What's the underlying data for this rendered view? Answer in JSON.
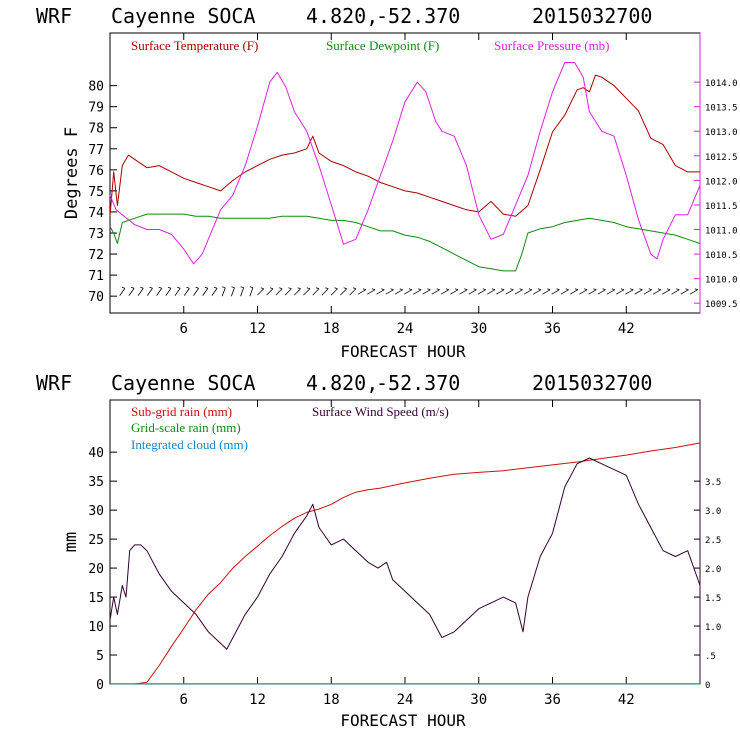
{
  "chart_data": [
    {
      "type": "line",
      "header": {
        "model": "WRF",
        "station": "Cayenne SOCA",
        "lat": "4.820,",
        "lon": "-52.370",
        "run": "2015032700"
      },
      "xlabel": "FORECAST HOUR",
      "ylabel": "Degrees F",
      "xlim": [
        0,
        48
      ],
      "xticks": [
        6,
        12,
        18,
        24,
        30,
        36,
        42
      ],
      "ylim": [
        69.2,
        82.5
      ],
      "yticks": [
        70,
        71,
        72,
        73,
        74,
        75,
        76,
        77,
        78,
        79,
        80
      ],
      "y2lim": [
        1009.3,
        1015.0
      ],
      "y2ticks": [
        "1009.5",
        "1010.0",
        "1010.5",
        "1011.0",
        "1011.5",
        "1012.0",
        "1012.5",
        "1013.0",
        "1013.5",
        "1014.0"
      ],
      "legend": [
        "Surface Temperature (F)",
        "Surface Dewpoint (F)",
        "Surface Pressure (mb)"
      ],
      "wind_barbs": "row of wind barbs along y≈70.2",
      "series": [
        {
          "name": "Surface Temperature (F)",
          "color": "#aa0000",
          "axis": "left",
          "x": [
            0,
            0.3,
            0.6,
            1,
            1.5,
            2,
            3,
            4,
            5,
            6,
            7,
            8,
            9,
            10,
            11,
            12,
            13,
            14,
            15,
            16,
            16.5,
            17,
            18,
            19,
            20,
            21,
            22,
            23,
            24,
            25,
            26,
            27,
            28,
            29,
            30,
            31,
            32,
            33,
            34,
            35,
            36,
            37,
            38,
            38.5,
            39,
            39.5,
            40,
            41,
            42,
            43,
            44,
            45,
            46,
            47,
            48
          ],
          "values": [
            73.8,
            75.9,
            74.3,
            76.2,
            76.7,
            76.5,
            76.1,
            76.2,
            75.9,
            75.6,
            75.4,
            75.2,
            75.0,
            75.5,
            75.9,
            76.2,
            76.5,
            76.7,
            76.8,
            77.0,
            77.6,
            76.8,
            76.4,
            76.2,
            75.9,
            75.7,
            75.4,
            75.2,
            75.0,
            74.9,
            74.7,
            74.5,
            74.3,
            74.1,
            74.0,
            74.5,
            73.9,
            73.8,
            74.3,
            76.0,
            77.8,
            78.6,
            79.8,
            79.9,
            79.7,
            80.5,
            80.4,
            80.0,
            79.4,
            78.8,
            77.5,
            77.2,
            76.2,
            75.9,
            75.9
          ]
        },
        {
          "name": "Surface Dewpoint (F)",
          "color": "#118811",
          "axis": "left",
          "x": [
            0,
            0.3,
            0.6,
            1,
            2,
            3,
            4,
            5,
            6,
            7,
            8,
            9,
            10,
            11,
            12,
            13,
            14,
            15,
            16,
            17,
            18,
            19,
            20,
            21,
            22,
            23,
            24,
            25,
            26,
            27,
            28,
            29,
            30,
            31,
            32,
            33,
            33.5,
            34,
            35,
            36,
            37,
            38,
            39,
            40,
            41,
            42,
            43,
            44,
            45,
            46,
            47,
            48
          ],
          "values": [
            73.3,
            73.0,
            72.5,
            73.5,
            73.7,
            73.9,
            73.9,
            73.9,
            73.9,
            73.8,
            73.8,
            73.7,
            73.7,
            73.7,
            73.7,
            73.7,
            73.8,
            73.8,
            73.8,
            73.7,
            73.6,
            73.6,
            73.5,
            73.3,
            73.1,
            73.1,
            72.9,
            72.8,
            72.6,
            72.3,
            72.0,
            71.7,
            71.4,
            71.3,
            71.2,
            71.2,
            72.0,
            73.0,
            73.2,
            73.3,
            73.5,
            73.6,
            73.7,
            73.6,
            73.5,
            73.3,
            73.2,
            73.1,
            73.0,
            72.9,
            72.7,
            72.5
          ]
        },
        {
          "name": "Surface Pressure (mb)",
          "color": "#dd22dd",
          "axis": "right",
          "x": [
            0,
            0.5,
            1,
            2,
            3,
            4,
            5,
            6,
            6.8,
            7.5,
            8,
            9,
            10,
            11,
            12,
            13,
            13.6,
            14.3,
            15,
            16,
            17,
            18,
            19,
            20,
            21,
            22,
            23,
            24,
            25,
            25.7,
            26.5,
            27,
            28,
            29,
            30,
            31,
            32,
            33,
            34,
            35,
            36,
            37,
            37.8,
            38.5,
            39,
            40,
            41,
            42,
            43,
            44,
            44.5,
            45,
            46,
            47,
            48
          ],
          "values": [
            1011.7,
            1011.4,
            1011.3,
            1011.1,
            1011.0,
            1011.0,
            1010.9,
            1010.6,
            1010.3,
            1010.5,
            1010.8,
            1011.4,
            1011.7,
            1012.3,
            1013.1,
            1014.0,
            1014.2,
            1013.9,
            1013.4,
            1013.0,
            1012.3,
            1011.5,
            1010.7,
            1010.8,
            1011.4,
            1012.1,
            1012.8,
            1013.6,
            1014.0,
            1013.8,
            1013.2,
            1013.0,
            1012.9,
            1012.3,
            1011.3,
            1010.8,
            1010.9,
            1011.5,
            1012.1,
            1013.0,
            1013.8,
            1014.4,
            1014.4,
            1014.1,
            1013.4,
            1013.0,
            1012.9,
            1012.1,
            1011.2,
            1010.5,
            1010.4,
            1010.8,
            1011.3,
            1011.3,
            1011.9
          ]
        }
      ]
    },
    {
      "type": "line",
      "header": {
        "model": "WRF",
        "station": "Cayenne SOCA",
        "lat": "4.820,",
        "lon": "-52.370",
        "run": "2015032700"
      },
      "xlabel": "FORECAST HOUR",
      "ylabel": "mm",
      "xlim": [
        0,
        48
      ],
      "xticks": [
        6,
        12,
        18,
        24,
        30,
        36,
        42
      ],
      "ylim": [
        0,
        49
      ],
      "yticks": [
        0,
        5,
        10,
        15,
        20,
        25,
        30,
        35,
        40
      ],
      "y2lim": [
        0,
        4.9
      ],
      "y2ticks": [
        "0",
        ".5",
        "1.0",
        "1.5",
        "2.0",
        "2.5",
        "3.0",
        "3.5"
      ],
      "legend": [
        "Sub-grid rain (mm)",
        "Grid-scale rain (mm)",
        "Integrated cloud (mm)",
        "Surface Wind Speed (m/s)"
      ],
      "series": [
        {
          "name": "Sub-grid rain (mm)",
          "color": "#cc1111",
          "axis": "left",
          "x": [
            0,
            2,
            3,
            4,
            5,
            6,
            7,
            8,
            9,
            10,
            11,
            12,
            13,
            14,
            15,
            16,
            17,
            18,
            19,
            20,
            21,
            22,
            24,
            26,
            28,
            30,
            32,
            34,
            36,
            38,
            40,
            42,
            44,
            46,
            48
          ],
          "values": [
            0,
            0,
            0.3,
            3.2,
            6.5,
            9.6,
            12.8,
            15.5,
            17.5,
            20.0,
            22.0,
            23.8,
            25.6,
            27.2,
            28.6,
            29.6,
            30.2,
            31.0,
            32.2,
            33.1,
            33.5,
            33.8,
            34.7,
            35.5,
            36.2,
            36.5,
            36.8,
            37.3,
            37.8,
            38.3,
            38.9,
            39.5,
            40.2,
            40.8,
            41.6
          ]
        },
        {
          "name": "Grid-scale rain (mm)",
          "color": "#118811",
          "axis": "left",
          "x": [
            0,
            48
          ],
          "values": [
            0,
            0
          ]
        },
        {
          "name": "Integrated cloud (mm)",
          "color": "#1188cc",
          "axis": "left",
          "x": [
            0,
            48
          ],
          "values": [
            0.05,
            0.05
          ]
        },
        {
          "name": "Surface Wind Speed (m/s)",
          "color": "#330033",
          "axis": "right",
          "x": [
            0,
            0.3,
            0.6,
            1,
            1.3,
            1.6,
            2,
            2.5,
            3,
            4,
            5,
            6,
            7,
            8,
            9,
            9.5,
            10,
            11,
            12,
            13,
            14,
            15,
            16,
            16.5,
            17,
            18,
            19,
            20,
            21,
            21.8,
            22.5,
            23,
            24,
            25,
            26,
            27,
            28,
            29,
            30,
            31,
            32,
            33,
            33.6,
            34,
            35,
            36,
            37,
            38,
            39,
            40,
            41,
            42,
            43,
            44,
            45,
            46,
            47,
            48
          ],
          "values": [
            1.1,
            1.5,
            1.2,
            1.7,
            1.5,
            2.3,
            2.4,
            2.4,
            2.3,
            1.9,
            1.6,
            1.4,
            1.2,
            0.9,
            0.7,
            0.6,
            0.8,
            1.2,
            1.5,
            1.9,
            2.2,
            2.6,
            2.9,
            3.1,
            2.7,
            2.4,
            2.5,
            2.3,
            2.1,
            2.0,
            2.1,
            1.8,
            1.6,
            1.4,
            1.2,
            0.8,
            0.9,
            1.1,
            1.3,
            1.4,
            1.5,
            1.4,
            0.9,
            1.5,
            2.2,
            2.6,
            3.4,
            3.8,
            3.9,
            3.8,
            3.7,
            3.6,
            3.1,
            2.7,
            2.3,
            2.2,
            2.3,
            1.7
          ]
        }
      ]
    }
  ]
}
